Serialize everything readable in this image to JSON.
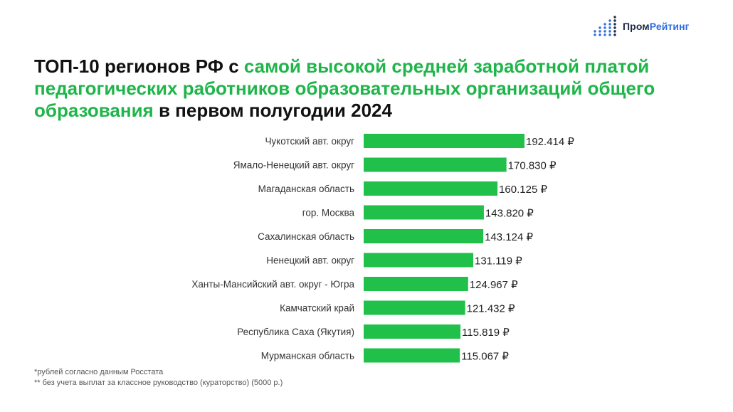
{
  "logo": {
    "part1": "Пром",
    "part2": "Рейтинг",
    "icon": "bar-dots-logo-icon"
  },
  "title": {
    "part1": "ТОП-10 регионов РФ с ",
    "part2": "самой высокой средней заработной платой педагогических работников  образовательных организаций общего образования",
    "part3": " в первом полугодии 2024"
  },
  "colors": {
    "bar": "#20c04a",
    "highlight": "#20b54a",
    "logo_accent": "#2f6de1"
  },
  "chart_data": {
    "type": "bar",
    "orientation": "horizontal",
    "categories": [
      "Чукотский авт. округ",
      "Ямало-Ненецкий авт. округ",
      "Магаданская область",
      "гор. Москва",
      "Сахалинская область",
      "Ненецкий авт. округ",
      "Ханты-Мансийский авт. округ - Югра",
      "Камчатский край",
      "Республика Саха (Якутия)",
      "Мурманская область"
    ],
    "values": [
      192414,
      170830,
      160125,
      143820,
      143124,
      131119,
      124967,
      121432,
      115819,
      115067
    ],
    "value_labels": [
      "192.414 ₽",
      "170.830 ₽",
      "160.125 ₽",
      "143.820 ₽",
      "143.124 ₽",
      "131.119 ₽",
      "124.967 ₽",
      "121.432 ₽",
      "115.819 ₽",
      "115.067 ₽"
    ],
    "xlim": [
      0,
      192414
    ],
    "grid": false,
    "title": "",
    "xlabel": "",
    "ylabel": ""
  },
  "footnotes": [
    "*рублей согласно данным Росстата",
    "** без учета выплат за классное руководство (кураторство) (5000 р.)"
  ]
}
